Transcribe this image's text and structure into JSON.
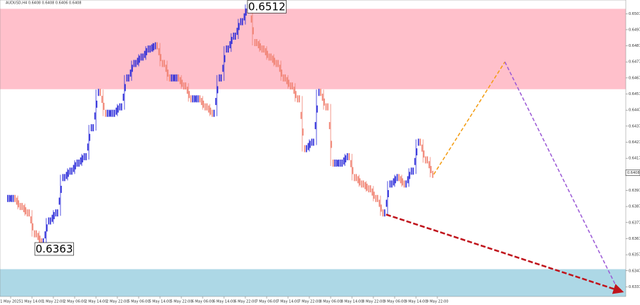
{
  "chart_data": {
    "type": "bar",
    "title": "AUDUSD,H4  0.6408 0.6408 0.6406 0.6408",
    "values": [
      0.6392,
      0.6387,
      0.6383,
      0.637,
      0.6365,
      0.6378,
      0.6383,
      0.6405,
      0.6409,
      0.6414,
      0.6418,
      0.6436,
      0.6458,
      0.6445,
      0.6445,
      0.6449,
      0.6467,
      0.6476,
      0.648,
      0.6485,
      0.6487,
      0.6476,
      0.6467,
      0.6467,
      0.6462,
      0.6454,
      0.6454,
      0.6449,
      0.6445,
      0.6467,
      0.6485,
      0.6493,
      0.6502,
      0.6511,
      0.6489,
      0.6485,
      0.648,
      0.6476,
      0.6467,
      0.6462,
      0.6454,
      0.6423,
      0.6427,
      0.6458,
      0.6449,
      0.6414,
      0.6414,
      0.6418,
      0.6405,
      0.6401,
      0.6398,
      0.6392,
      0.6383,
      0.6401,
      0.6405,
      0.6401,
      0.6409,
      0.6427,
      0.6416,
      0.6407
    ],
    "up_color": "#2929d9",
    "down_color": "#f08070",
    "xlim": [
      -1.5,
      86.5
    ],
    "xticks": [
      {
        "value": 0,
        "label": "1 May 2025"
      },
      {
        "value": 3,
        "label": "1 May 14:00"
      },
      {
        "value": 6,
        "label": "1 May 22:00"
      },
      {
        "value": 9,
        "label": "2 May 06:00"
      },
      {
        "value": 12,
        "label": "2 May 14:00"
      },
      {
        "value": 15,
        "label": "2 May 22:00"
      },
      {
        "value": 18,
        "label": "5 May 06:00"
      },
      {
        "value": 21,
        "label": "5 May 14:00"
      },
      {
        "value": 24,
        "label": "5 May 22:00"
      },
      {
        "value": 27,
        "label": "6 May 06:00"
      },
      {
        "value": 30,
        "label": "6 May 14:00"
      },
      {
        "value": 33,
        "label": "6 May 22:00"
      },
      {
        "value": 36,
        "label": "7 May 06:00"
      },
      {
        "value": 39,
        "label": "7 May 14:00"
      },
      {
        "value": 42,
        "label": "7 May 22:00"
      },
      {
        "value": 45,
        "label": "8 May 06:00"
      },
      {
        "value": 48,
        "label": "8 May 14:00"
      },
      {
        "value": 51,
        "label": "8 May 22:00"
      },
      {
        "value": 54,
        "label": "9 May 06:00"
      },
      {
        "value": 57,
        "label": "9 May 14:00"
      },
      {
        "value": 60,
        "label": "9 May 22:00"
      }
    ],
    "ylim": [
      0.6331,
      0.65155
    ],
    "yticks": [
      {
        "value": 0.6337,
        "label": "0.6337"
      },
      {
        "value": 0.6347,
        "label": "0.6347"
      },
      {
        "value": 0.6357,
        "label": "0.6357"
      },
      {
        "value": 0.6367,
        "label": "0.6367"
      },
      {
        "value": 0.6377,
        "label": "0.6377"
      },
      {
        "value": 0.6387,
        "label": "0.6387"
      },
      {
        "value": 0.6397,
        "label": "0.6397"
      },
      {
        "value": 0.6407,
        "label": "0.6407"
      },
      {
        "value": 0.6417,
        "label": "0.6417"
      },
      {
        "value": 0.6427,
        "label": "0.6427"
      },
      {
        "value": 0.6437,
        "label": "0.6437"
      },
      {
        "value": 0.6447,
        "label": "0.6447"
      },
      {
        "value": 0.6457,
        "label": "0.6457"
      },
      {
        "value": 0.6467,
        "label": "0.6467"
      },
      {
        "value": 0.6477,
        "label": "0.6477"
      },
      {
        "value": 0.6487,
        "label": "0.6487"
      },
      {
        "value": 0.6497,
        "label": "0.6497"
      },
      {
        "value": 0.6507,
        "label": "0.6507"
      }
    ],
    "current_price": 0.6408,
    "zones": [
      {
        "from": 0.646,
        "to": 0.651,
        "color": "#ffc0cb"
      },
      {
        "from": 0.6331,
        "to": 0.6348,
        "color": "#add8e6"
      }
    ],
    "annotations": [
      {
        "value": 0.6512
      },
      {
        "value": 0.6363
      }
    ],
    "forecasts": [
      {
        "color": "#f39c12",
        "x": [
          59.5,
          69.5
        ],
        "y": [
          0.6407,
          0.6477
        ]
      },
      {
        "color": "#9b59d6",
        "x": [
          69.5,
          85.3
        ],
        "y": [
          0.6477,
          0.6336
        ]
      },
      {
        "color": "#c0141c",
        "x": [
          52.8,
          86
        ],
        "y": [
          0.6382,
          0.6334
        ]
      }
    ]
  }
}
